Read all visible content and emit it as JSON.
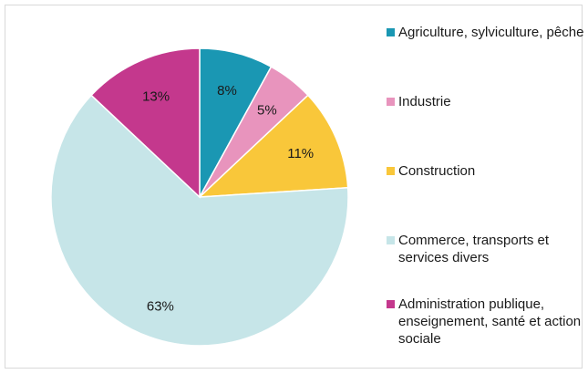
{
  "chart_data": {
    "type": "pie",
    "slices": [
      {
        "label": "Agriculture, sylviculture, pêche",
        "value": 8,
        "value_label": "8%",
        "color": "#1a97b3"
      },
      {
        "label": "Industrie",
        "value": 5,
        "value_label": "5%",
        "color": "#e894bd"
      },
      {
        "label": "Construction",
        "value": 11,
        "value_label": "11%",
        "color": "#f9c73a"
      },
      {
        "label": "Commerce, transports et services divers",
        "value": 63,
        "value_label": "63%",
        "color": "#c6e5e8"
      },
      {
        "label": "Administration publique, enseignement, santé et action sociale",
        "value": 13,
        "value_label": "13%",
        "color": "#c4388d"
      }
    ],
    "legend_position": "right",
    "start_angle": "12 o'clock",
    "direction": "clockwise"
  }
}
